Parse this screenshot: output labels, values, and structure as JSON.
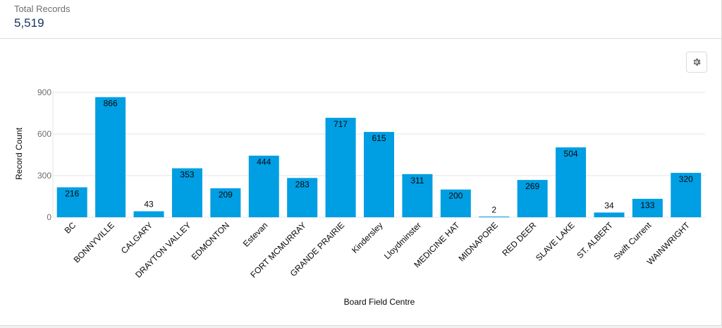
{
  "summary": {
    "label": "Total Records",
    "value": "5,519"
  },
  "toolbar": {
    "settings_icon": "gear-icon"
  },
  "colors": {
    "bar": "#009ee3",
    "grid": "#e5e5e5",
    "tick": "#706e6b",
    "label": "#080707",
    "summary_value": "#16325c"
  },
  "chart_data": {
    "type": "bar",
    "categories": [
      "BC",
      "BONNYVILLE",
      "CALGARY",
      "DRAYTON VALLEY",
      "EDMONTON",
      "Estevan",
      "FORT MCMURRAY",
      "GRANDE PRAIRIE",
      "Kindersley",
      "Lloydminster",
      "MEDICINE HAT",
      "MIDNAPORE",
      "RED DEER",
      "SLAVE LAKE",
      "ST. ALBERT",
      "Swift Current",
      "WAINWRIGHT"
    ],
    "values": [
      216,
      866,
      43,
      353,
      209,
      444,
      283,
      717,
      615,
      311,
      200,
      2,
      269,
      504,
      34,
      133,
      320
    ],
    "xlabel": "Board Field Centre",
    "ylabel": "Record Count",
    "yticks": [
      0,
      300,
      600,
      900
    ],
    "ylim": [
      0,
      900
    ],
    "grid": true,
    "legend": "none"
  }
}
